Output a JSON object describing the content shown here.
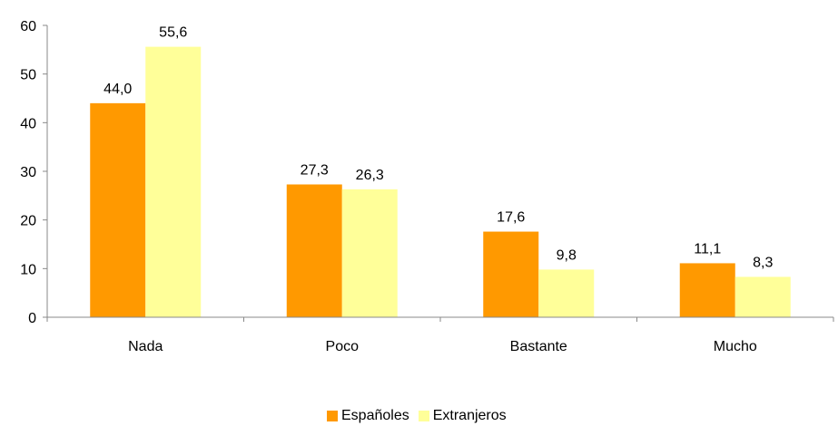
{
  "chart_data": {
    "type": "bar",
    "categories": [
      "Nada",
      "Poco",
      "Bastante",
      "Mucho"
    ],
    "series": [
      {
        "name": "Españoles",
        "values": [
          44.0,
          27.3,
          17.6,
          11.1
        ],
        "color": "#FF9900"
      },
      {
        "name": "Extranjeros",
        "values": [
          55.6,
          26.3,
          9.8,
          8.3
        ],
        "color": "#FFFF99"
      }
    ],
    "data_labels": [
      [
        "44,0",
        "27,3",
        "17,6",
        "11,1"
      ],
      [
        "55,6",
        "26,3",
        "9,8",
        "8,3"
      ]
    ],
    "yticks": [
      "0",
      "10",
      "20",
      "30",
      "40",
      "50",
      "60"
    ],
    "ylim": [
      0,
      60
    ],
    "grid": false,
    "legend_position": "bottom"
  }
}
